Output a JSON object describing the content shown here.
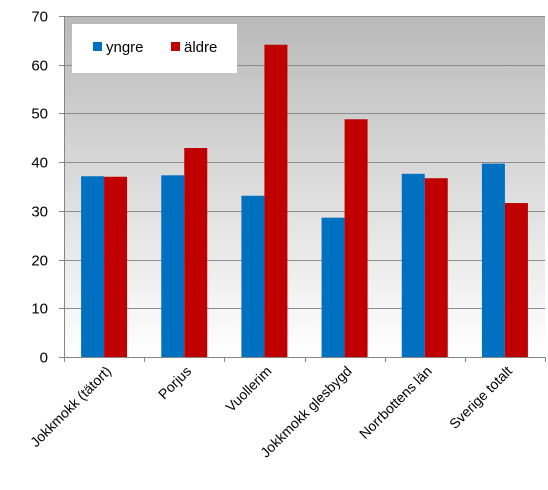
{
  "chart_data": {
    "type": "bar",
    "categories": [
      "Jokkmokk (tätort)",
      "Porjus",
      "Vuollerim",
      "Jokkmokk glesbygd",
      "Norrbottens län",
      "Sverige totalt"
    ],
    "series": [
      {
        "name": "yngre",
        "values": [
          37.1,
          37.3,
          33.1,
          28.6,
          37.6,
          39.7
        ],
        "color": "#0070C0"
      },
      {
        "name": "äldre",
        "values": [
          37.0,
          42.9,
          64.1,
          48.8,
          36.7,
          31.6
        ],
        "color": "#C00000"
      }
    ],
    "ylim": [
      0,
      70
    ],
    "yticks": [
      "0",
      "10",
      "20",
      "30",
      "40",
      "50",
      "60",
      "70"
    ],
    "title": "",
    "xlabel": "",
    "ylabel": "",
    "grid": true,
    "legend_position": "top-left",
    "plot_background": "gradient-gray"
  }
}
